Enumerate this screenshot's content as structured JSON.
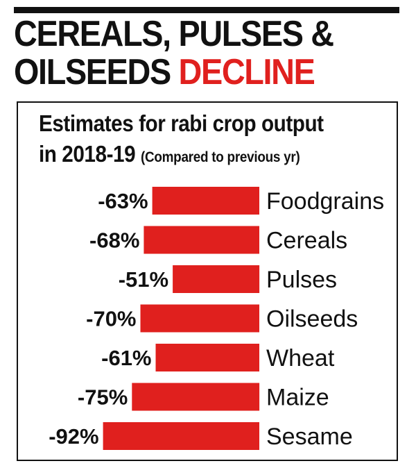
{
  "headline": {
    "line1": "CEREALS, PULSES &",
    "line2_black": "OILSEEDS",
    "line2_red": "DECLINE"
  },
  "colors": {
    "bar": "#e0201e",
    "text": "#111111",
    "accent": "#e0201e"
  },
  "chart_data": {
    "type": "bar",
    "orientation": "horizontal",
    "title": "Estimates for rabi crop output",
    "subtitle_year": "in 2018-19",
    "note": "(Compared to previous yr)",
    "categories": [
      "Foodgrains",
      "Cereals",
      "Pulses",
      "Oilseeds",
      "Wheat",
      "Maize",
      "Sesame"
    ],
    "values": [
      -63,
      -68,
      -51,
      -70,
      -61,
      -75,
      -92
    ],
    "value_labels": [
      "-63%",
      "-68%",
      "-51%",
      "-70%",
      "-61%",
      "-75%",
      "-92%"
    ],
    "unit": "%",
    "grid": false,
    "legend": "none"
  }
}
